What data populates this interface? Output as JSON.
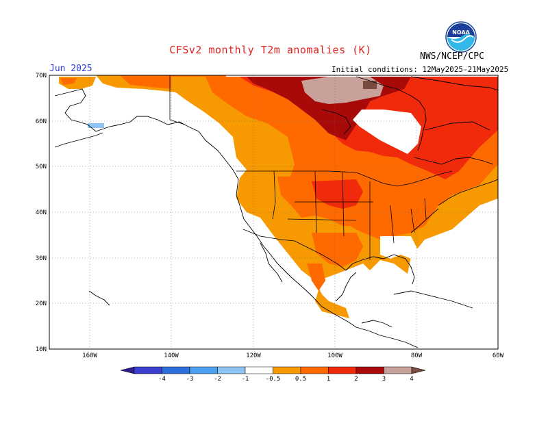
{
  "title": "CFSv2 monthly T2m anomalies (K)",
  "organization": "NWS/NCEP/CPC",
  "logo_text": "NOAA",
  "month": "Jun 2025",
  "initial_conditions": "Initial conditions: 12May2025-21May2025",
  "lat_labels": [
    "70N",
    "60N",
    "50N",
    "40N",
    "30N",
    "20N",
    "10N"
  ],
  "lon_labels": [
    "160W",
    "140W",
    "120W",
    "100W",
    "80W",
    "60W"
  ],
  "colorbar": {
    "labels": [
      "-4",
      "-3",
      "-2",
      "-1",
      "-0.5",
      "0.5",
      "1",
      "2",
      "3",
      "4"
    ],
    "colors": [
      "#2c1e8c",
      "#3b3fd0",
      "#2f6fdc",
      "#4d9ff0",
      "#8ec4f6",
      "#ffffff",
      "#f79900",
      "#ff6a00",
      "#f02a0a",
      "#a80a0a",
      "#c8a29a",
      "#7a4a40"
    ]
  }
}
